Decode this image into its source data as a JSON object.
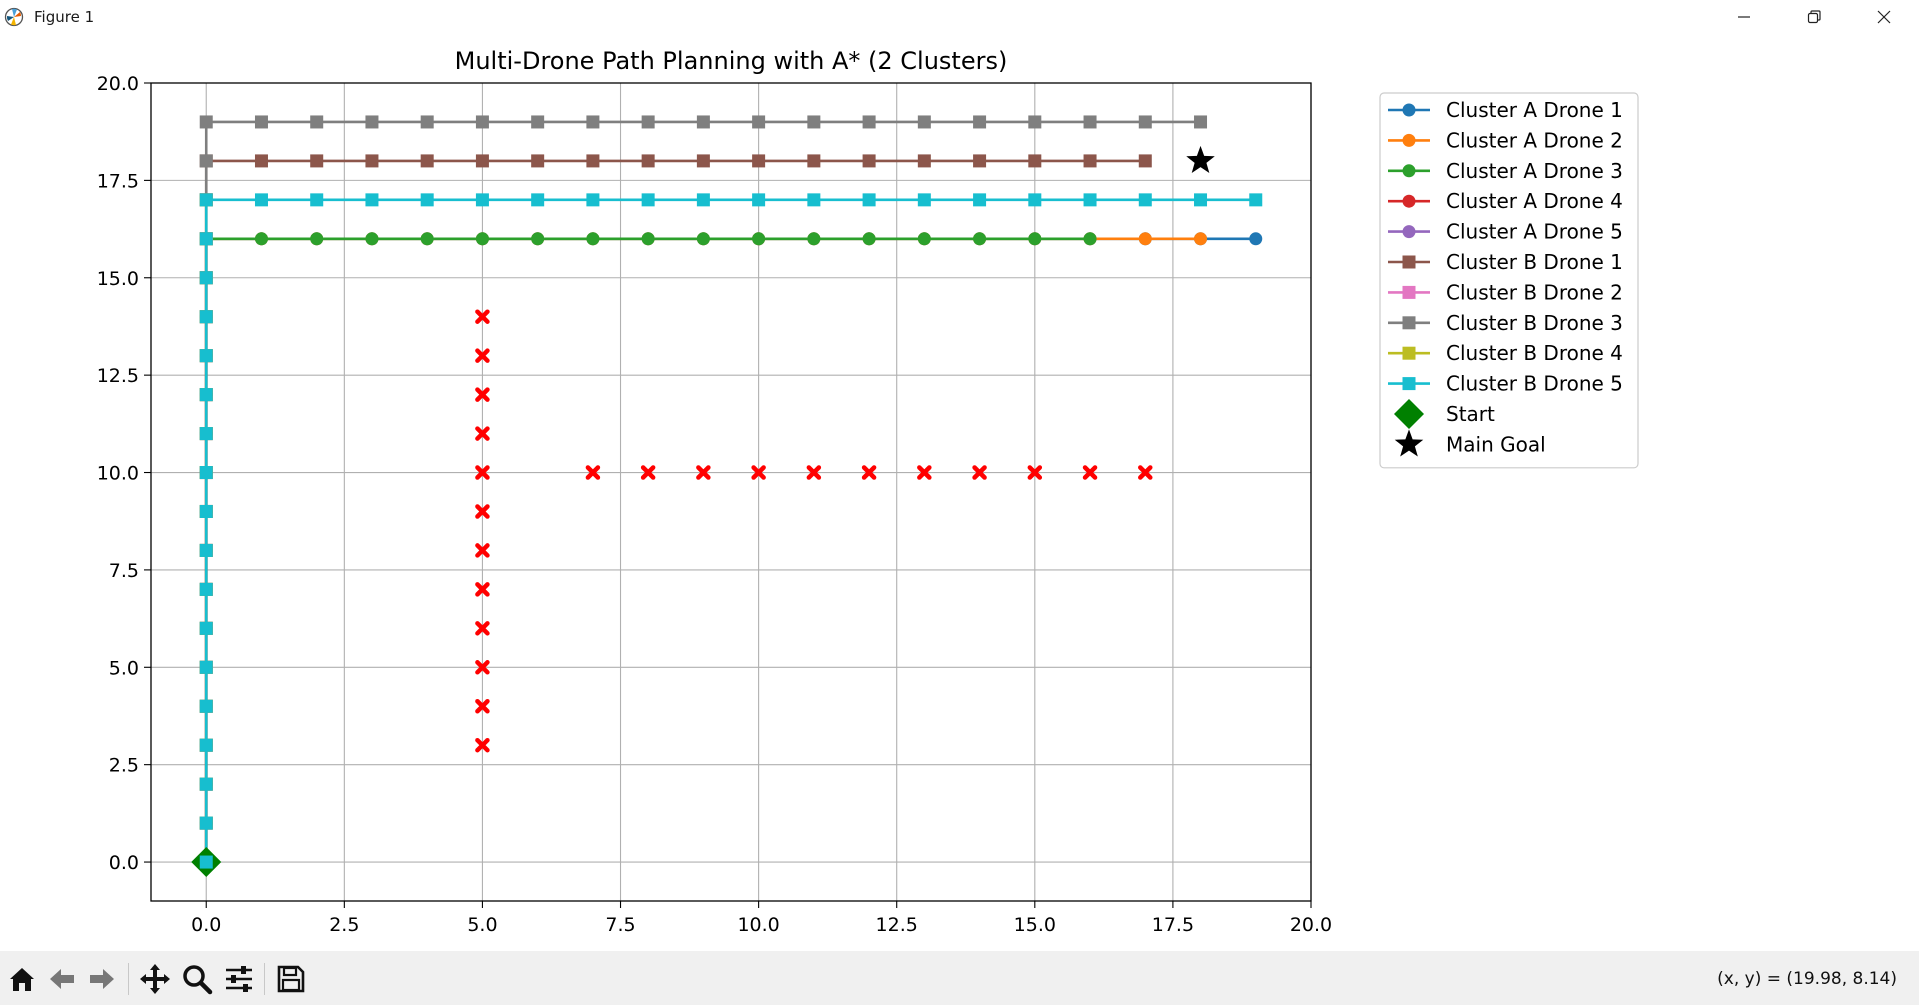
{
  "window": {
    "title": "Figure 1",
    "icons": {
      "app": "matplotlib-icon",
      "minimize": "minimize-icon",
      "restore": "restore-icon",
      "close": "close-icon"
    }
  },
  "toolbar": {
    "buttons": [
      {
        "name": "home-button",
        "icon": "home-icon"
      },
      {
        "name": "back-button",
        "icon": "arrow-left-icon"
      },
      {
        "name": "forward-button",
        "icon": "arrow-right-icon"
      },
      {
        "name": "pan-button",
        "icon": "move-icon"
      },
      {
        "name": "zoom-button",
        "icon": "magnifier-icon"
      },
      {
        "name": "configure-subplots-button",
        "icon": "sliders-icon"
      },
      {
        "name": "save-button",
        "icon": "floppy-icon"
      }
    ],
    "coords": "(x, y) = (19.98, 8.14)"
  },
  "chart_data": {
    "type": "line",
    "title": "Multi-Drone Path Planning with A* (2 Clusters)",
    "xlabel": "",
    "ylabel": "",
    "xlim": [
      -1,
      20
    ],
    "ylim": [
      -1,
      20
    ],
    "xticks": [
      "0.0",
      "2.5",
      "5.0",
      "7.5",
      "10.0",
      "12.5",
      "15.0",
      "17.5",
      "20.0"
    ],
    "yticks": [
      "0.0",
      "2.5",
      "5.0",
      "7.5",
      "10.0",
      "12.5",
      "15.0",
      "17.5",
      "20.0"
    ],
    "grid": true,
    "legend_position": "outside-upper-right",
    "series": [
      {
        "name": "Cluster A Drone 1",
        "color": "#1f77b4",
        "marker": "circle",
        "x": [
          0,
          0,
          0,
          0,
          0,
          0,
          0,
          0,
          0,
          0,
          0,
          0,
          0,
          0,
          0,
          0,
          0,
          1,
          2,
          3,
          4,
          5,
          6,
          7,
          8,
          9,
          10,
          11,
          12,
          13,
          14,
          15,
          16,
          17,
          18,
          19
        ],
        "y": [
          0,
          1,
          2,
          3,
          4,
          5,
          6,
          7,
          8,
          9,
          10,
          11,
          12,
          13,
          14,
          15,
          16,
          16,
          16,
          16,
          16,
          16,
          16,
          16,
          16,
          16,
          16,
          16,
          16,
          16,
          16,
          16,
          16,
          16,
          16,
          16
        ]
      },
      {
        "name": "Cluster A Drone 2",
        "color": "#ff7f0e",
        "marker": "circle",
        "x": [
          0,
          0,
          0,
          0,
          0,
          0,
          0,
          0,
          0,
          0,
          0,
          0,
          0,
          0,
          0,
          0,
          0,
          1,
          2,
          3,
          4,
          5,
          6,
          7,
          8,
          9,
          10,
          11,
          12,
          13,
          14,
          15,
          16,
          17,
          18
        ],
        "y": [
          0,
          1,
          2,
          3,
          4,
          5,
          6,
          7,
          8,
          9,
          10,
          11,
          12,
          13,
          14,
          15,
          16,
          16,
          16,
          16,
          16,
          16,
          16,
          16,
          16,
          16,
          16,
          16,
          16,
          16,
          16,
          16,
          16,
          16,
          16
        ]
      },
      {
        "name": "Cluster A Drone 3",
        "color": "#2ca02c",
        "marker": "circle",
        "x": [
          0,
          0,
          0,
          0,
          0,
          0,
          0,
          0,
          0,
          0,
          0,
          0,
          0,
          0,
          0,
          0,
          0,
          1,
          2,
          3,
          4,
          5,
          6,
          7,
          8,
          9,
          10,
          11,
          12,
          13,
          14,
          15,
          16
        ],
        "y": [
          0,
          1,
          2,
          3,
          4,
          5,
          6,
          7,
          8,
          9,
          10,
          11,
          12,
          13,
          14,
          15,
          16,
          16,
          16,
          16,
          16,
          16,
          16,
          16,
          16,
          16,
          16,
          16,
          16,
          16,
          16,
          16,
          16
        ]
      },
      {
        "name": "Cluster A Drone 4",
        "color": "#d62728",
        "marker": "circle",
        "x": [
          0,
          0,
          0,
          0,
          0,
          0,
          0,
          0,
          0,
          0,
          0,
          0,
          0,
          0,
          0,
          0,
          0
        ],
        "y": [
          0,
          1,
          2,
          3,
          4,
          5,
          6,
          7,
          8,
          9,
          10,
          11,
          12,
          13,
          14,
          15,
          16
        ]
      },
      {
        "name": "Cluster A Drone 5",
        "color": "#9467bd",
        "marker": "circle",
        "x": [
          0,
          0,
          0,
          0,
          0,
          0,
          0,
          0,
          0,
          0,
          0,
          0,
          0,
          0,
          0,
          0,
          0
        ],
        "y": [
          0,
          1,
          2,
          3,
          4,
          5,
          6,
          7,
          8,
          9,
          10,
          11,
          12,
          13,
          14,
          15,
          16
        ]
      },
      {
        "name": "Cluster B Drone 1",
        "color": "#8c564b",
        "marker": "square",
        "x": [
          0,
          0,
          0,
          0,
          0,
          0,
          0,
          0,
          0,
          0,
          0,
          0,
          0,
          0,
          0,
          0,
          0,
          0,
          0,
          1,
          2,
          3,
          4,
          5,
          6,
          7,
          8,
          9,
          10,
          11,
          12,
          13,
          14,
          15,
          16,
          17
        ],
        "y": [
          0,
          1,
          2,
          3,
          4,
          5,
          6,
          7,
          8,
          9,
          10,
          11,
          12,
          13,
          14,
          15,
          16,
          17,
          18,
          18,
          18,
          18,
          18,
          18,
          18,
          18,
          18,
          18,
          18,
          18,
          18,
          18,
          18,
          18,
          18,
          18
        ]
      },
      {
        "name": "Cluster B Drone 2",
        "color": "#e377c2",
        "marker": "square",
        "x": [
          0,
          0,
          0,
          0,
          0,
          0,
          0,
          0,
          0,
          0,
          0,
          0,
          0,
          0,
          0,
          0,
          0,
          0
        ],
        "y": [
          0,
          1,
          2,
          3,
          4,
          5,
          6,
          7,
          8,
          9,
          10,
          11,
          12,
          13,
          14,
          15,
          16,
          17
        ]
      },
      {
        "name": "Cluster B Drone 3",
        "color": "#7f7f7f",
        "marker": "square",
        "x": [
          0,
          0,
          0,
          0,
          0,
          0,
          0,
          0,
          0,
          0,
          0,
          0,
          0,
          0,
          0,
          0,
          0,
          0,
          0,
          0,
          1,
          2,
          3,
          4,
          5,
          6,
          7,
          8,
          9,
          10,
          11,
          12,
          13,
          14,
          15,
          16,
          17,
          18
        ],
        "y": [
          0,
          1,
          2,
          3,
          4,
          5,
          6,
          7,
          8,
          9,
          10,
          11,
          12,
          13,
          14,
          15,
          16,
          17,
          18,
          19,
          19,
          19,
          19,
          19,
          19,
          19,
          19,
          19,
          19,
          19,
          19,
          19,
          19,
          19,
          19,
          19,
          19,
          19
        ]
      },
      {
        "name": "Cluster B Drone 4",
        "color": "#bcbd22",
        "marker": "square",
        "x": [
          0,
          0,
          0,
          0,
          0,
          0,
          0,
          0,
          0,
          0,
          0,
          0,
          0,
          0,
          0,
          0,
          0,
          0
        ],
        "y": [
          0,
          1,
          2,
          3,
          4,
          5,
          6,
          7,
          8,
          9,
          10,
          11,
          12,
          13,
          14,
          15,
          16,
          17
        ]
      },
      {
        "name": "Cluster B Drone 5",
        "color": "#17becf",
        "marker": "square",
        "x": [
          0,
          0,
          0,
          0,
          0,
          0,
          0,
          0,
          0,
          0,
          0,
          0,
          0,
          0,
          0,
          0,
          0,
          0,
          1,
          2,
          3,
          4,
          5,
          6,
          7,
          8,
          9,
          10,
          11,
          12,
          13,
          14,
          15,
          16,
          17,
          18,
          19
        ],
        "y": [
          0,
          1,
          2,
          3,
          4,
          5,
          6,
          7,
          8,
          9,
          10,
          11,
          12,
          13,
          14,
          15,
          16,
          17,
          17,
          17,
          17,
          17,
          17,
          17,
          17,
          17,
          17,
          17,
          17,
          17,
          17,
          17,
          17,
          17,
          17,
          17,
          17
        ]
      }
    ],
    "obstacles": {
      "color": "#ff0000",
      "marker": "x",
      "points": [
        [
          5,
          3
        ],
        [
          5,
          4
        ],
        [
          5,
          5
        ],
        [
          5,
          6
        ],
        [
          5,
          7
        ],
        [
          5,
          8
        ],
        [
          5,
          9
        ],
        [
          5,
          10
        ],
        [
          5,
          11
        ],
        [
          5,
          12
        ],
        [
          5,
          13
        ],
        [
          5,
          14
        ],
        [
          7,
          10
        ],
        [
          8,
          10
        ],
        [
          9,
          10
        ],
        [
          10,
          10
        ],
        [
          11,
          10
        ],
        [
          12,
          10
        ],
        [
          13,
          10
        ],
        [
          14,
          10
        ],
        [
          15,
          10
        ],
        [
          16,
          10
        ],
        [
          17,
          10
        ]
      ]
    },
    "start": {
      "name": "Start",
      "x": 0,
      "y": 0,
      "color": "#008000",
      "marker": "diamond"
    },
    "goal": {
      "name": "Main Goal",
      "x": 18,
      "y": 18,
      "color": "#000000",
      "marker": "star"
    }
  }
}
